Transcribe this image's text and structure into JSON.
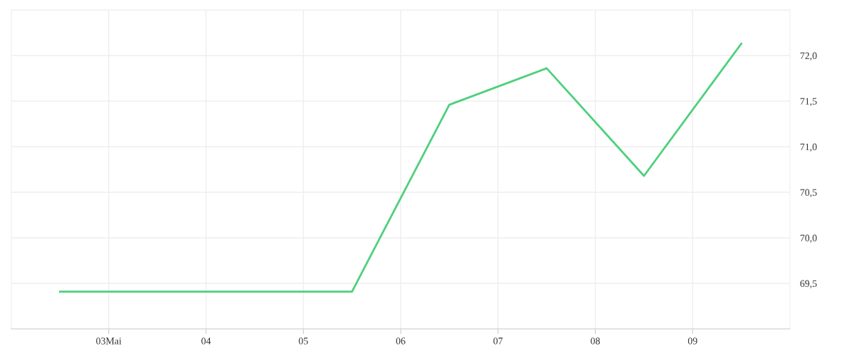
{
  "chart_data": {
    "type": "line",
    "x": [
      2.5,
      3.5,
      4.5,
      5.5,
      6.5,
      7.5,
      8.5,
      9.5
    ],
    "series": [
      {
        "color": "#4dd07c",
        "values": [
          69.41,
          69.41,
          69.41,
          69.41,
          71.46,
          71.86,
          70.68,
          72.13
        ]
      }
    ],
    "xlim": [
      2.0,
      10.0
    ],
    "xticks": [
      {
        "value": 3,
        "label": "03Mai"
      },
      {
        "value": 4,
        "label": "04"
      },
      {
        "value": 5,
        "label": "05"
      },
      {
        "value": 6,
        "label": "06"
      },
      {
        "value": 7,
        "label": "07"
      },
      {
        "value": 8,
        "label": "08"
      },
      {
        "value": 9,
        "label": "09"
      }
    ],
    "ylim": [
      69.0,
      72.5
    ],
    "yticks": [
      {
        "value": 69.0,
        "label": null
      },
      {
        "value": 69.5,
        "label": "69,5"
      },
      {
        "value": 70.0,
        "label": "70,0"
      },
      {
        "value": 70.5,
        "label": "70,5"
      },
      {
        "value": 71.0,
        "label": "71,0"
      },
      {
        "value": 71.5,
        "label": "71,5"
      },
      {
        "value": 72.0,
        "label": "72,0"
      },
      {
        "value": 72.5,
        "label": null
      }
    ],
    "grid": true,
    "marker": "none",
    "line_style": "solid"
  }
}
